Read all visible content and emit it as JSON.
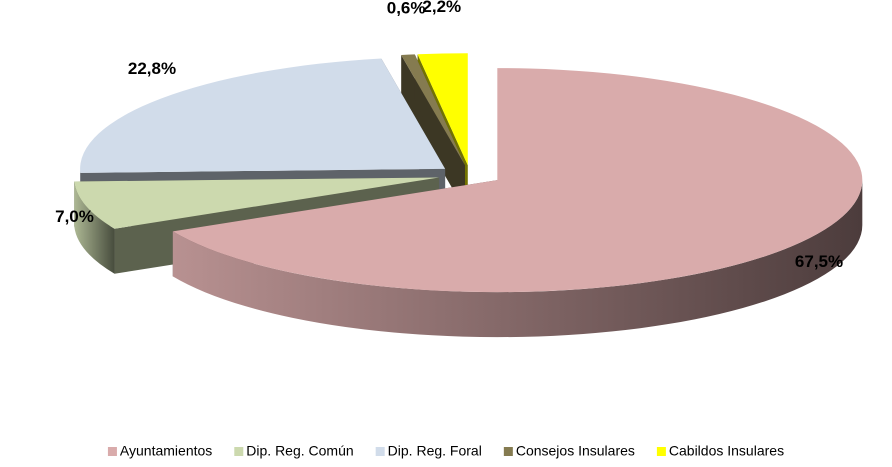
{
  "chart_data": {
    "type": "pie",
    "categories": [
      "Ayuntamientos",
      "Dip. Reg. Común",
      "Dip. Reg. Foral",
      "Consejos Insulares",
      "Cabildos Insulares"
    ],
    "values": [
      67.5,
      7.0,
      22.8,
      0.6,
      2.2
    ],
    "value_labels": [
      "67,5%",
      "7,0%",
      "22,8%",
      "0,6%",
      "2,2%"
    ],
    "colors": [
      "#d9abab",
      "#ccd9ae",
      "#d1dcea",
      "#857b50",
      "#ffff00"
    ],
    "legend": "bottom"
  }
}
